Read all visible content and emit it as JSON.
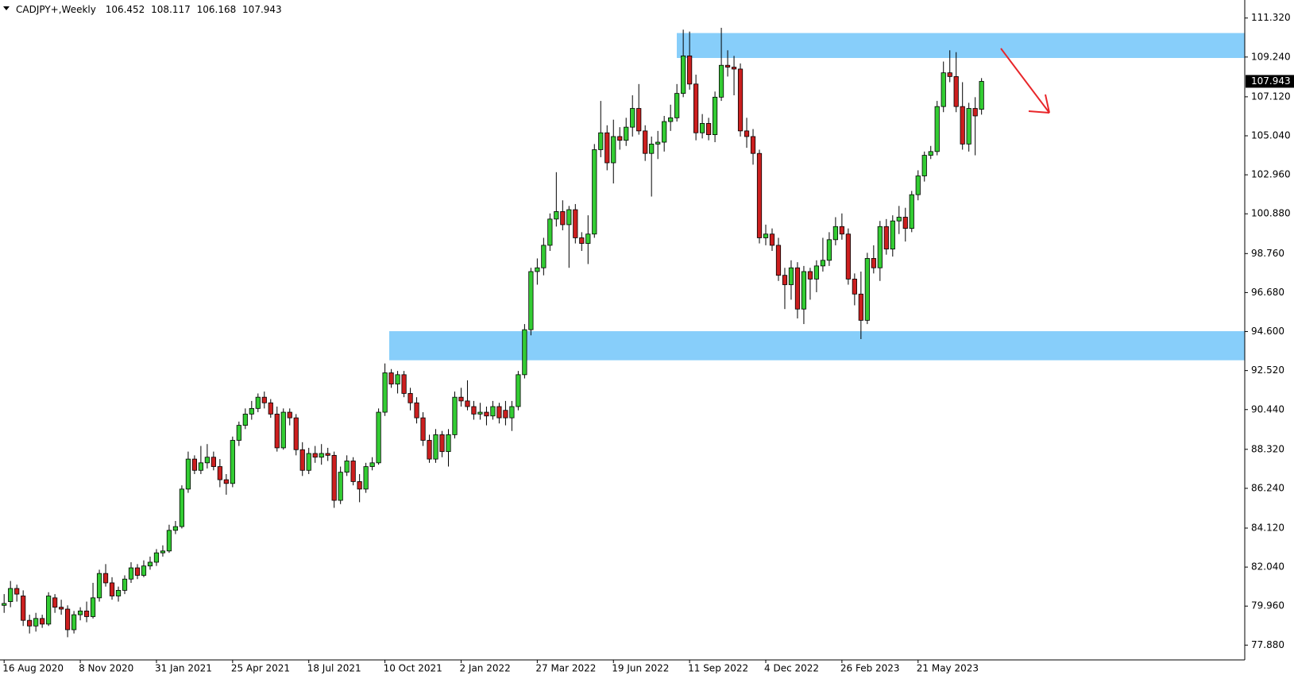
{
  "chart_data": {
    "type": "candlestick",
    "title": "CADJPY+,Weekly",
    "up_color": "#33cc33",
    "down_color": "#cc1f1f",
    "zone_color": "#87cefa",
    "ylim": [
      77.09,
      112.07
    ],
    "yticks": [
      {
        "value": 111.32,
        "label": "111.320"
      },
      {
        "value": 109.24,
        "label": "109.240"
      },
      {
        "value": 107.12,
        "label": "107.120"
      },
      {
        "value": 105.04,
        "label": "105.040"
      },
      {
        "value": 102.96,
        "label": "102.960"
      },
      {
        "value": 100.88,
        "label": "100.880"
      },
      {
        "value": 98.76,
        "label": "98.760"
      },
      {
        "value": 96.68,
        "label": "96.680"
      },
      {
        "value": 94.6,
        "label": "94.600"
      },
      {
        "value": 92.52,
        "label": "92.520"
      },
      {
        "value": 90.44,
        "label": "90.440"
      },
      {
        "value": 88.32,
        "label": "88.320"
      },
      {
        "value": 86.24,
        "label": "86.240"
      },
      {
        "value": 84.12,
        "label": "84.120"
      },
      {
        "value": 82.04,
        "label": "82.040"
      },
      {
        "value": 79.96,
        "label": "79.960"
      },
      {
        "value": 77.88,
        "label": "77.880"
      }
    ],
    "zones": [
      {
        "from": 109.19,
        "to": 110.52
      },
      {
        "from": 93.07,
        "to": 94.62
      }
    ],
    "categories": [
      "16 Aug 2020",
      null,
      null,
      null,
      null,
      null,
      null,
      null,
      null,
      null,
      null,
      null,
      "8 Nov 2020",
      null,
      null,
      null,
      null,
      null,
      null,
      null,
      null,
      null,
      null,
      null,
      "31 Jan 2021",
      null,
      null,
      null,
      null,
      null,
      null,
      null,
      null,
      null,
      null,
      null,
      "25 Apr 2021",
      null,
      null,
      null,
      null,
      null,
      null,
      null,
      null,
      null,
      null,
      null,
      "18 Jul 2021",
      null,
      null,
      null,
      null,
      null,
      null,
      null,
      null,
      null,
      null,
      null,
      "10 Oct 2021",
      null,
      null,
      null,
      null,
      null,
      null,
      null,
      null,
      null,
      null,
      null,
      "2 Jan 2022",
      null,
      null,
      null,
      null,
      null,
      null,
      null,
      null,
      null,
      null,
      null,
      "27 Mar 2022",
      null,
      null,
      null,
      null,
      null,
      null,
      null,
      null,
      null,
      null,
      null,
      "19 Jun 2022",
      null,
      null,
      null,
      null,
      null,
      null,
      null,
      null,
      null,
      null,
      null,
      "11 Sep 2022",
      null,
      null,
      null,
      null,
      null,
      null,
      null,
      null,
      null,
      null,
      null,
      "4 Dec 2022",
      null,
      null,
      null,
      null,
      null,
      null,
      null,
      null,
      null,
      null,
      null,
      "26 Feb 2023",
      null,
      null,
      null,
      null,
      null,
      null,
      null,
      null,
      null,
      null,
      null,
      "21 May 2023",
      null,
      null,
      null,
      null,
      null,
      null,
      null,
      null,
      null,
      null
    ],
    "ohlc": [
      [
        80.0,
        80.6,
        79.6,
        80.1
      ],
      [
        80.2,
        81.3,
        79.9,
        80.9
      ],
      [
        80.9,
        81.1,
        80.2,
        80.6
      ],
      [
        80.5,
        80.8,
        78.9,
        79.2
      ],
      [
        79.2,
        79.5,
        78.5,
        78.9
      ],
      [
        78.9,
        79.6,
        78.6,
        79.3
      ],
      [
        79.3,
        79.5,
        78.8,
        79.0
      ],
      [
        79.0,
        80.7,
        78.9,
        80.5
      ],
      [
        80.4,
        80.6,
        79.6,
        79.9
      ],
      [
        79.9,
        80.3,
        79.5,
        79.8
      ],
      [
        79.8,
        80.0,
        78.3,
        78.7
      ],
      [
        78.7,
        79.7,
        78.5,
        79.5
      ],
      [
        79.5,
        79.9,
        79.2,
        79.7
      ],
      [
        79.7,
        80.2,
        79.1,
        79.4
      ],
      [
        79.4,
        81.2,
        79.3,
        80.4
      ],
      [
        80.4,
        81.9,
        80.2,
        81.7
      ],
      [
        81.7,
        82.2,
        81.0,
        81.2
      ],
      [
        81.2,
        81.5,
        80.3,
        80.5
      ],
      [
        80.5,
        81.0,
        80.2,
        80.8
      ],
      [
        80.8,
        81.6,
        80.6,
        81.4
      ],
      [
        81.4,
        82.3,
        81.2,
        82.0
      ],
      [
        82.0,
        82.2,
        81.4,
        81.6
      ],
      [
        81.6,
        82.4,
        81.5,
        82.1
      ],
      [
        82.1,
        82.6,
        81.9,
        82.3
      ],
      [
        82.3,
        83.0,
        82.1,
        82.8
      ],
      [
        82.8,
        83.2,
        82.6,
        82.9
      ],
      [
        82.9,
        84.3,
        82.8,
        84.0
      ],
      [
        84.0,
        84.5,
        83.8,
        84.2
      ],
      [
        84.2,
        86.4,
        84.1,
        86.2
      ],
      [
        86.2,
        88.2,
        86.0,
        87.8
      ],
      [
        87.8,
        88.0,
        87.0,
        87.2
      ],
      [
        87.2,
        88.5,
        87.0,
        87.6
      ],
      [
        87.6,
        88.6,
        87.3,
        87.9
      ],
      [
        87.9,
        88.2,
        87.2,
        87.4
      ],
      [
        87.4,
        87.8,
        86.3,
        86.7
      ],
      [
        86.7,
        87.0,
        85.9,
        86.5
      ],
      [
        86.5,
        89.0,
        86.3,
        88.8
      ],
      [
        88.8,
        89.8,
        88.5,
        89.6
      ],
      [
        89.6,
        90.5,
        89.4,
        90.2
      ],
      [
        90.2,
        90.9,
        89.9,
        90.5
      ],
      [
        90.5,
        91.3,
        90.3,
        91.1
      ],
      [
        91.1,
        91.4,
        90.5,
        90.8
      ],
      [
        90.8,
        91.0,
        90.0,
        90.2
      ],
      [
        90.2,
        90.6,
        88.2,
        88.4
      ],
      [
        88.4,
        90.5,
        88.3,
        90.3
      ],
      [
        90.3,
        90.5,
        89.6,
        90.0
      ],
      [
        90.0,
        90.2,
        88.0,
        88.3
      ],
      [
        88.3,
        88.7,
        86.9,
        87.2
      ],
      [
        87.2,
        88.4,
        87.0,
        88.1
      ],
      [
        88.1,
        88.5,
        87.6,
        87.9
      ],
      [
        87.9,
        88.6,
        87.5,
        88.1
      ],
      [
        88.1,
        88.4,
        87.7,
        88.0
      ],
      [
        88.0,
        88.2,
        85.2,
        85.6
      ],
      [
        85.6,
        87.4,
        85.4,
        87.1
      ],
      [
        87.1,
        88.0,
        86.9,
        87.7
      ],
      [
        87.7,
        87.9,
        86.4,
        86.6
      ],
      [
        86.6,
        87.0,
        85.5,
        86.2
      ],
      [
        86.2,
        87.6,
        86.0,
        87.4
      ],
      [
        87.4,
        87.9,
        87.2,
        87.6
      ],
      [
        87.6,
        90.5,
        87.5,
        90.3
      ],
      [
        90.3,
        92.9,
        90.1,
        92.4
      ],
      [
        92.4,
        92.6,
        91.6,
        91.8
      ],
      [
        91.8,
        92.5,
        91.3,
        92.3
      ],
      [
        92.3,
        92.5,
        91.1,
        91.3
      ],
      [
        91.3,
        91.6,
        90.4,
        90.8
      ],
      [
        90.8,
        91.1,
        89.7,
        90.0
      ],
      [
        90.0,
        90.3,
        88.5,
        88.8
      ],
      [
        88.8,
        89.1,
        87.6,
        87.8
      ],
      [
        87.8,
        89.4,
        87.6,
        89.1
      ],
      [
        89.1,
        89.3,
        87.9,
        88.2
      ],
      [
        88.2,
        89.4,
        87.4,
        89.1
      ],
      [
        89.1,
        91.4,
        88.9,
        91.1
      ],
      [
        91.1,
        91.6,
        90.6,
        90.9
      ],
      [
        90.9,
        92.0,
        90.4,
        90.6
      ],
      [
        90.6,
        90.9,
        89.9,
        90.2
      ],
      [
        90.2,
        90.8,
        89.9,
        90.3
      ],
      [
        90.3,
        90.6,
        89.6,
        90.1
      ],
      [
        90.1,
        90.9,
        89.9,
        90.6
      ],
      [
        90.6,
        90.8,
        89.7,
        90.0
      ],
      [
        90.4,
        90.9,
        89.6,
        90.0
      ],
      [
        90.0,
        90.9,
        89.3,
        90.6
      ],
      [
        90.6,
        92.5,
        90.4,
        92.3
      ],
      [
        92.3,
        95.0,
        92.1,
        94.7
      ],
      [
        94.7,
        98.0,
        94.4,
        97.8
      ],
      [
        97.8,
        98.5,
        97.1,
        98.0
      ],
      [
        98.0,
        99.6,
        97.6,
        99.2
      ],
      [
        99.2,
        100.9,
        98.9,
        100.6
      ],
      [
        100.6,
        103.1,
        100.2,
        101.0
      ],
      [
        101.0,
        101.6,
        100.0,
        100.3
      ],
      [
        100.3,
        101.3,
        98.0,
        101.1
      ],
      [
        101.1,
        101.4,
        99.3,
        99.6
      ],
      [
        99.6,
        99.9,
        98.9,
        99.3
      ],
      [
        99.3,
        100.8,
        98.2,
        99.8
      ],
      [
        99.8,
        104.6,
        99.6,
        104.3
      ],
      [
        104.3,
        106.9,
        103.9,
        105.2
      ],
      [
        105.2,
        105.6,
        103.2,
        103.6
      ],
      [
        103.6,
        105.9,
        102.5,
        105.0
      ],
      [
        105.0,
        105.5,
        104.3,
        104.8
      ],
      [
        104.8,
        106.0,
        104.5,
        105.5
      ],
      [
        105.5,
        107.2,
        105.0,
        106.5
      ],
      [
        106.5,
        107.8,
        105.1,
        105.3
      ],
      [
        105.3,
        105.6,
        103.7,
        104.1
      ],
      [
        104.1,
        105.0,
        101.8,
        104.6
      ],
      [
        104.6,
        105.3,
        103.8,
        104.7
      ],
      [
        104.7,
        106.1,
        104.2,
        105.8
      ],
      [
        105.8,
        106.7,
        105.3,
        106.0
      ],
      [
        106.0,
        107.8,
        105.8,
        107.3
      ],
      [
        107.3,
        110.7,
        107.1,
        109.3
      ],
      [
        109.3,
        110.6,
        107.5,
        107.8
      ],
      [
        107.8,
        108.3,
        104.8,
        105.2
      ],
      [
        105.2,
        106.2,
        104.9,
        105.7
      ],
      [
        105.7,
        106.0,
        104.8,
        105.1
      ],
      [
        105.1,
        107.4,
        104.7,
        107.1
      ],
      [
        107.1,
        110.8,
        106.9,
        108.8
      ],
      [
        108.8,
        109.6,
        108.2,
        108.7
      ],
      [
        108.7,
        109.3,
        107.2,
        108.6
      ],
      [
        108.6,
        108.9,
        105.0,
        105.3
      ],
      [
        105.3,
        106.0,
        104.4,
        105.0
      ],
      [
        105.0,
        105.4,
        103.5,
        104.1
      ],
      [
        104.1,
        104.3,
        99.3,
        99.6
      ],
      [
        99.6,
        100.3,
        99.2,
        99.8
      ],
      [
        99.8,
        100.1,
        98.9,
        99.2
      ],
      [
        99.2,
        99.6,
        97.3,
        97.6
      ],
      [
        97.6,
        98.0,
        95.8,
        97.1
      ],
      [
        97.1,
        98.4,
        96.3,
        98.0
      ],
      [
        98.0,
        98.3,
        95.3,
        95.8
      ],
      [
        95.8,
        98.1,
        95.0,
        97.8
      ],
      [
        97.8,
        98.0,
        96.3,
        97.4
      ],
      [
        97.4,
        98.4,
        96.7,
        98.1
      ],
      [
        98.1,
        99.6,
        97.8,
        98.4
      ],
      [
        98.4,
        99.9,
        98.1,
        99.5
      ],
      [
        99.5,
        100.7,
        99.2,
        100.2
      ],
      [
        100.2,
        100.9,
        99.5,
        99.8
      ],
      [
        99.8,
        100.1,
        97.1,
        97.4
      ],
      [
        97.4,
        97.7,
        96.0,
        96.6
      ],
      [
        96.6,
        97.8,
        94.2,
        95.2
      ],
      [
        95.2,
        98.8,
        95.0,
        98.5
      ],
      [
        98.5,
        99.2,
        97.7,
        98.0
      ],
      [
        98.0,
        100.5,
        97.3,
        100.2
      ],
      [
        100.2,
        100.6,
        98.7,
        99.0
      ],
      [
        99.0,
        100.8,
        98.6,
        100.5
      ],
      [
        100.5,
        101.3,
        99.8,
        100.7
      ],
      [
        100.7,
        101.2,
        99.4,
        100.1
      ],
      [
        100.1,
        102.1,
        99.9,
        101.9
      ],
      [
        101.9,
        103.2,
        101.6,
        102.9
      ],
      [
        102.9,
        104.2,
        102.6,
        104.0
      ],
      [
        104.0,
        104.5,
        103.8,
        104.2
      ],
      [
        104.2,
        106.9,
        104.0,
        106.6
      ],
      [
        106.6,
        109.0,
        106.3,
        108.4
      ],
      [
        108.4,
        109.6,
        107.9,
        108.2
      ],
      [
        108.2,
        109.5,
        106.3,
        106.6
      ],
      [
        106.6,
        107.9,
        104.3,
        104.6
      ],
      [
        104.6,
        106.8,
        104.2,
        106.5
      ],
      [
        106.5,
        107.1,
        104.0,
        106.1
      ],
      [
        106.452,
        108.117,
        106.168,
        107.943
      ]
    ]
  }
}
